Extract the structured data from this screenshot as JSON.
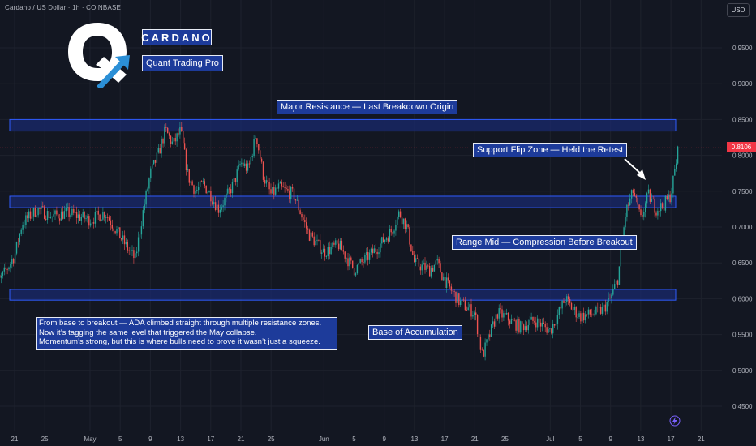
{
  "header": {
    "symbol_line": "Cardano / US Dollar · 1h · COINBASE",
    "currency_button": "USD"
  },
  "brand": {
    "name": "CARDANO",
    "subtitle": "Quant Trading Pro",
    "logo_icon": "q-arrow-logo-icon"
  },
  "colors": {
    "background": "#131722",
    "up": "#26a69a",
    "down": "#ef5350",
    "zone_fill": "#1a2a6e",
    "zone_border": "#2f5cff",
    "label_bg": "#1d3b9a",
    "price_line": "#f23645"
  },
  "annotations": {
    "major_resistance": "Major Resistance — Last Breakdown Origin",
    "support_flip": "Support Flip Zone — Held the Retest",
    "range_mid": "Range Mid — Compression Before Breakout",
    "base": "Base of Accumulation",
    "note_lines": [
      "From base to breakout — ADA climbed straight through multiple resistance zones.",
      "Now it’s tagging the same level that triggered the May collapse.",
      "Momentum’s strong, but this is where bulls need to prove it wasn’t just a squeeze."
    ]
  },
  "last_price": "0.8106",
  "chart_data": {
    "type": "candlestick",
    "y_ticks": [
      "0.9500",
      "0.9000",
      "0.8500",
      "0.8000",
      "0.7500",
      "0.7000",
      "0.6500",
      "0.6000",
      "0.5500",
      "0.5000",
      "0.4500"
    ],
    "x_ticks": [
      "21",
      "25",
      "May",
      "5",
      "9",
      "13",
      "17",
      "21",
      "25",
      "Jun",
      "5",
      "9",
      "13",
      "17",
      "21",
      "25",
      "Jul",
      "5",
      "9",
      "13",
      "17",
      "21"
    ],
    "ylim": [
      0.42,
      0.99
    ],
    "last_price": 0.8106,
    "zones": [
      {
        "name": "Major Resistance — Last Breakdown Origin",
        "low": 0.834,
        "high": 0.85
      },
      {
        "name": "Support Flip Zone — Held the Retest",
        "low": 0.727,
        "high": 0.743
      },
      {
        "name": "Base of Accumulation",
        "low": 0.598,
        "high": 0.613
      }
    ],
    "price_path": [
      {
        "date": "Apr 18",
        "price": 0.64
      },
      {
        "date": "Apr 19",
        "price": 0.625
      },
      {
        "date": "Apr 21",
        "price": 0.66
      },
      {
        "date": "Apr 22",
        "price": 0.705
      },
      {
        "date": "Apr 24",
        "price": 0.725
      },
      {
        "date": "Apr 26",
        "price": 0.715
      },
      {
        "date": "Apr 28",
        "price": 0.72
      },
      {
        "date": "May 1",
        "price": 0.71
      },
      {
        "date": "May 3",
        "price": 0.72
      },
      {
        "date": "May 6",
        "price": 0.67
      },
      {
        "date": "May 7",
        "price": 0.655
      },
      {
        "date": "May 8",
        "price": 0.72
      },
      {
        "date": "May 9",
        "price": 0.775
      },
      {
        "date": "May 10",
        "price": 0.8
      },
      {
        "date": "May 11",
        "price": 0.835
      },
      {
        "date": "May 12",
        "price": 0.815
      },
      {
        "date": "May 13",
        "price": 0.835
      },
      {
        "date": "May 14",
        "price": 0.77
      },
      {
        "date": "May 15",
        "price": 0.75
      },
      {
        "date": "May 16",
        "price": 0.76
      },
      {
        "date": "May 17",
        "price": 0.745
      },
      {
        "date": "May 18",
        "price": 0.725
      },
      {
        "date": "May 19",
        "price": 0.74
      },
      {
        "date": "May 20",
        "price": 0.76
      },
      {
        "date": "May 21",
        "price": 0.79
      },
      {
        "date": "May 22",
        "price": 0.78
      },
      {
        "date": "May 23",
        "price": 0.83
      },
      {
        "date": "May 24",
        "price": 0.77
      },
      {
        "date": "May 25",
        "price": 0.745
      },
      {
        "date": "May 26",
        "price": 0.755
      },
      {
        "date": "May 28",
        "price": 0.745
      },
      {
        "date": "May 30",
        "price": 0.69
      },
      {
        "date": "Jun 1",
        "price": 0.665
      },
      {
        "date": "Jun 3",
        "price": 0.675
      },
      {
        "date": "Jun 5",
        "price": 0.64
      },
      {
        "date": "Jun 6",
        "price": 0.65
      },
      {
        "date": "Jun 8",
        "price": 0.67
      },
      {
        "date": "Jun 10",
        "price": 0.695
      },
      {
        "date": "Jun 11",
        "price": 0.72
      },
      {
        "date": "Jun 12",
        "price": 0.7
      },
      {
        "date": "Jun 13",
        "price": 0.65
      },
      {
        "date": "Jun 15",
        "price": 0.64
      },
      {
        "date": "Jun 16",
        "price": 0.65
      },
      {
        "date": "Jun 17",
        "price": 0.625
      },
      {
        "date": "Jun 19",
        "price": 0.595
      },
      {
        "date": "Jun 21",
        "price": 0.58
      },
      {
        "date": "Jun 22",
        "price": 0.52
      },
      {
        "date": "Jun 23",
        "price": 0.55
      },
      {
        "date": "Jun 24",
        "price": 0.58
      },
      {
        "date": "Jun 25",
        "price": 0.575
      },
      {
        "date": "Jun 27",
        "price": 0.56
      },
      {
        "date": "Jun 29",
        "price": 0.57
      },
      {
        "date": "Jul 1",
        "price": 0.555
      },
      {
        "date": "Jul 3",
        "price": 0.6
      },
      {
        "date": "Jul 4",
        "price": 0.585
      },
      {
        "date": "Jul 5",
        "price": 0.575
      },
      {
        "date": "Jul 7",
        "price": 0.58
      },
      {
        "date": "Jul 8",
        "price": 0.585
      },
      {
        "date": "Jul 9",
        "price": 0.6
      },
      {
        "date": "Jul 10",
        "price": 0.63
      },
      {
        "date": "Jul 11",
        "price": 0.72
      },
      {
        "date": "Jul 12",
        "price": 0.75
      },
      {
        "date": "Jul 13",
        "price": 0.71
      },
      {
        "date": "Jul 14",
        "price": 0.745
      },
      {
        "date": "Jul 15",
        "price": 0.725
      },
      {
        "date": "Jul 16",
        "price": 0.73
      },
      {
        "date": "Jul 17",
        "price": 0.745
      },
      {
        "date": "Jul 18",
        "price": 0.8106
      }
    ]
  }
}
